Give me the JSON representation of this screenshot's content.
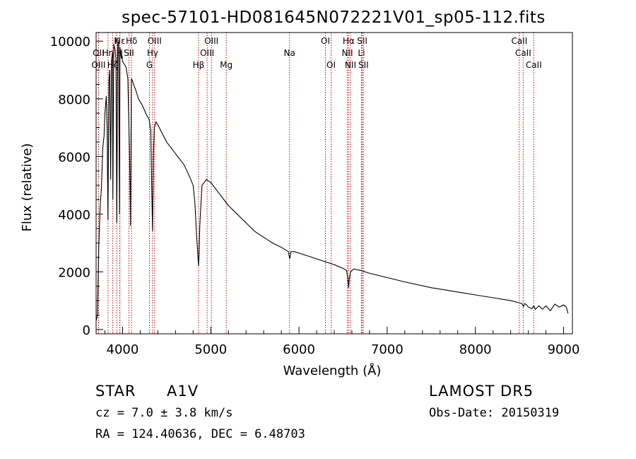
{
  "chart_data": {
    "type": "line",
    "title": "spec-57101-HD081645N072221V01_sp05-112.fits",
    "xlabel": "Wavelength (Å)",
    "ylabel": "Flux (relative)",
    "xlim": [
      3700,
      9100
    ],
    "ylim": [
      -150,
      10300
    ],
    "xticks": [
      4000,
      5000,
      6000,
      7000,
      8000,
      9000
    ],
    "yticks": [
      0,
      2000,
      4000,
      6000,
      8000,
      10000
    ],
    "grid": false,
    "series": [
      {
        "x": [
          3700,
          3715,
          3730,
          3745,
          3760,
          3775,
          3790,
          3800,
          3815,
          3825,
          3835,
          3845,
          3855,
          3865,
          3875,
          3885,
          3890,
          3900,
          3915,
          3925,
          3935,
          3945,
          3955,
          3965,
          3970,
          3985,
          3995,
          4000,
          4040,
          4060,
          4080,
          4090,
          4100,
          4115,
          4130,
          4150,
          4180,
          4220,
          4250,
          4270,
          4300,
          4320,
          4330,
          4340,
          4350,
          4360,
          4380,
          4400,
          4450,
          4500,
          4600,
          4700,
          4760,
          4800,
          4820,
          4840,
          4850,
          4855,
          4861,
          4867,
          4875,
          4900,
          4950,
          5000,
          5100,
          5175,
          5200,
          5300,
          5400,
          5500,
          5600,
          5700,
          5800,
          5880,
          5895,
          5910,
          5950,
          6000,
          6100,
          6200,
          6300,
          6400,
          6500,
          6540,
          6555,
          6563,
          6571,
          6585,
          6620,
          6700,
          6800,
          7000,
          7200,
          7500,
          7800,
          8000,
          8200,
          8400,
          8500,
          8530,
          8545,
          8560,
          8580,
          8600,
          8640,
          8662,
          8680,
          8720,
          8760,
          8800,
          8850,
          8900,
          8950,
          9000,
          9030,
          9050
        ],
        "y": [
          300,
          500,
          2800,
          4200,
          4900,
          6300,
          6700,
          7500,
          8100,
          7000,
          3800,
          8600,
          9000,
          5200,
          9300,
          9600,
          4500,
          9900,
          9700,
          9400,
          3700,
          9900,
          10000,
          4000,
          9800,
          9400,
          9500,
          9300,
          9100,
          8700,
          6000,
          3600,
          8700,
          8600,
          8450,
          8300,
          8000,
          7800,
          7600,
          7450,
          7300,
          6900,
          5000,
          3400,
          6000,
          7000,
          7200,
          7100,
          6800,
          6500,
          6100,
          5700,
          5300,
          5000,
          4400,
          3200,
          2800,
          2500,
          2200,
          2600,
          3600,
          5000,
          5200,
          5100,
          4700,
          4400,
          4300,
          4000,
          3700,
          3400,
          3200,
          3000,
          2850,
          2700,
          2450,
          2700,
          2700,
          2650,
          2550,
          2450,
          2350,
          2250,
          2120,
          2050,
          1750,
          1450,
          1750,
          2000,
          2100,
          2050,
          1950,
          1800,
          1650,
          1450,
          1300,
          1200,
          1100,
          1000,
          920,
          890,
          800,
          900,
          850,
          780,
          720,
          820,
          700,
          820,
          700,
          820,
          650,
          880,
          780,
          850,
          780,
          560
        ]
      }
    ],
    "line_markers": [
      {
        "label": "Hε",
        "wavelength": 3970,
        "row": 1
      },
      {
        "label": "K",
        "wavelength": 3934,
        "row": 1
      },
      {
        "label": "Hδ",
        "wavelength": 4102,
        "row": 1
      },
      {
        "label": "OIII",
        "wavelength": 4363,
        "row": 1
      },
      {
        "label": "OIII",
        "wavelength": 5007,
        "row": 1
      },
      {
        "label": "OI",
        "wavelength": 6300,
        "row": 1
      },
      {
        "label": "Hα",
        "wavelength": 6563,
        "row": 1
      },
      {
        "label": "SII",
        "wavelength": 6717,
        "row": 1
      },
      {
        "label": "CaII",
        "wavelength": 8498,
        "row": 1
      },
      {
        "label": "OII",
        "wavelength": 3727,
        "row": 2
      },
      {
        "label": "Hη",
        "wavelength": 3835,
        "row": 2
      },
      {
        "label": "H",
        "wavelength": 3968,
        "row": 2
      },
      {
        "label": "SII",
        "wavelength": 4072,
        "row": 2
      },
      {
        "label": "Hγ",
        "wavelength": 4340,
        "row": 2
      },
      {
        "label": "OIII",
        "wavelength": 4959,
        "row": 2
      },
      {
        "label": "Na",
        "wavelength": 5893,
        "row": 2
      },
      {
        "label": "NII",
        "wavelength": 6548,
        "row": 2
      },
      {
        "label": "Li",
        "wavelength": 6708,
        "row": 2
      },
      {
        "label": "CaII",
        "wavelength": 8542,
        "row": 2
      },
      {
        "label": "OIII",
        "wavelength": 3727,
        "row": 3
      },
      {
        "label": "Hζ",
        "wavelength": 3889,
        "row": 3
      },
      {
        "label": "G",
        "wavelength": 4305,
        "row": 3
      },
      {
        "label": "Hβ",
        "wavelength": 4861,
        "row": 3
      },
      {
        "label": "Mg",
        "wavelength": 5175,
        "row": 3
      },
      {
        "label": "OI",
        "wavelength": 6364,
        "row": 3
      },
      {
        "label": "NII",
        "wavelength": 6584,
        "row": 3
      },
      {
        "label": "SII",
        "wavelength": 6731,
        "row": 3
      },
      {
        "label": "CaII",
        "wavelength": 8662,
        "row": 3
      }
    ],
    "line_marker_color": "#cc0000"
  },
  "info": {
    "object_type": "STAR",
    "subclass": "A1V",
    "survey": "LAMOST DR5",
    "cz": "cz = 7.0 ± 3.8 km/s",
    "obs_date": "Obs-Date: 20150319",
    "coords": "RA = 124.40636, DEC =   6.48703"
  }
}
